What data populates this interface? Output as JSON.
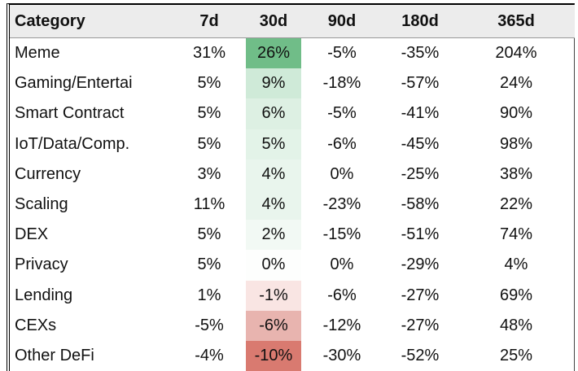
{
  "table": {
    "header": [
      "Category",
      "7d",
      "30d",
      "90d",
      "180d",
      "365d"
    ],
    "rows": [
      [
        "Meme",
        "31%",
        "26%",
        "-5%",
        "-35%",
        "204%"
      ],
      [
        "Gaming/Entertai",
        "5%",
        "9%",
        "-18%",
        "-57%",
        "24%"
      ],
      [
        "Smart Contract",
        "5%",
        "6%",
        "-5%",
        "-41%",
        "90%"
      ],
      [
        "IoT/Data/Comp.",
        "5%",
        "5%",
        "-6%",
        "-45%",
        "98%"
      ],
      [
        "Currency",
        "3%",
        "4%",
        "0%",
        "-25%",
        "38%"
      ],
      [
        "Scaling",
        "11%",
        "4%",
        "-23%",
        "-58%",
        "22%"
      ],
      [
        "DEX",
        "5%",
        "2%",
        "-15%",
        "-51%",
        "74%"
      ],
      [
        "Privacy",
        "5%",
        "0%",
        "0%",
        "-29%",
        "4%"
      ],
      [
        "Lending",
        "1%",
        "-1%",
        "-6%",
        "-27%",
        "69%"
      ],
      [
        "CEXs",
        "-5%",
        "-6%",
        "-12%",
        "-27%",
        "48%"
      ],
      [
        "Other DeFi",
        "-4%",
        "-10%",
        "-30%",
        "-52%",
        "25%"
      ]
    ],
    "highlight_column": 2,
    "highlight_colors": [
      "#70bd88",
      "#cfeAd8",
      "#ddf0e3",
      "#e3f3e8",
      "#e9f5ed",
      "#e9f5ed",
      "#f2f9f4",
      "#fdfefd",
      "#f9e5e3",
      "#e8b4af",
      "#d97a70"
    ]
  }
}
